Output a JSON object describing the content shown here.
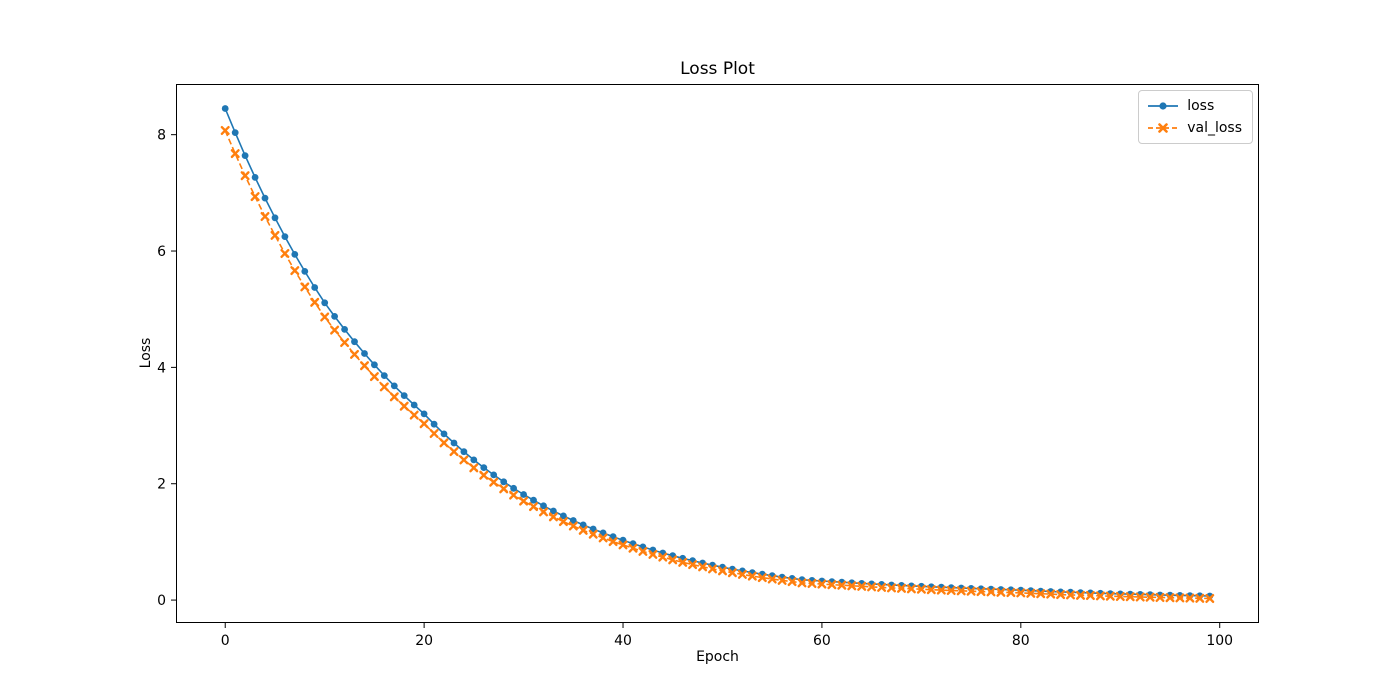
{
  "chart_data": {
    "type": "line",
    "title": "Loss Plot",
    "xlabel": "Epoch",
    "ylabel": "Loss",
    "xlim": [
      -4.95,
      103.95
    ],
    "ylim": [
      -0.394,
      8.871
    ],
    "xticks": [
      0,
      20,
      40,
      60,
      80,
      100
    ],
    "yticks": [
      0,
      2,
      4,
      6,
      8
    ],
    "grid": false,
    "legend_position": "upper right",
    "background": "#ffffff",
    "axis_color": "#000000",
    "x": [
      0,
      1,
      2,
      3,
      4,
      5,
      6,
      7,
      8,
      9,
      10,
      11,
      12,
      13,
      14,
      15,
      16,
      17,
      18,
      19,
      20,
      21,
      22,
      23,
      24,
      25,
      26,
      27,
      28,
      29,
      30,
      31,
      32,
      33,
      34,
      35,
      36,
      37,
      38,
      39,
      40,
      41,
      42,
      43,
      44,
      45,
      46,
      47,
      48,
      49,
      50,
      51,
      52,
      53,
      54,
      55,
      56,
      57,
      58,
      59,
      60,
      61,
      62,
      63,
      64,
      65,
      66,
      67,
      68,
      69,
      70,
      71,
      72,
      73,
      74,
      75,
      76,
      77,
      78,
      79,
      80,
      81,
      82,
      83,
      84,
      85,
      86,
      87,
      88,
      89,
      90,
      91,
      92,
      93,
      94,
      95,
      96,
      97,
      98,
      99
    ],
    "series": [
      {
        "name": "loss",
        "color": "#1f77b4",
        "line_style": "solid",
        "marker": "circle",
        "values": [
          8.45,
          8.035,
          7.641,
          7.266,
          6.91,
          6.571,
          6.248,
          5.942,
          5.65,
          5.373,
          5.11,
          4.876,
          4.653,
          4.441,
          4.238,
          4.044,
          3.859,
          3.682,
          3.514,
          3.353,
          3.2,
          3.024,
          2.857,
          2.7,
          2.551,
          2.41,
          2.277,
          2.152,
          2.033,
          1.921,
          1.815,
          1.716,
          1.621,
          1.532,
          1.447,
          1.368,
          1.292,
          1.221,
          1.154,
          1.09,
          1.03,
          0.97,
          0.914,
          0.86,
          0.81,
          0.763,
          0.719,
          0.677,
          0.637,
          0.6,
          0.566,
          0.533,
          0.502,
          0.472,
          0.445,
          0.419,
          0.395,
          0.372,
          0.35,
          0.339,
          0.328,
          0.317,
          0.307,
          0.297,
          0.287,
          0.278,
          0.269,
          0.26,
          0.252,
          0.244,
          0.236,
          0.228,
          0.221,
          0.214,
          0.207,
          0.2,
          0.194,
          0.188,
          0.181,
          0.176,
          0.17,
          0.162,
          0.155,
          0.148,
          0.141,
          0.135,
          0.128,
          0.123,
          0.117,
          0.112,
          0.107,
          0.102,
          0.097,
          0.093,
          0.088,
          0.084,
          0.081,
          0.077,
          0.073,
          0.07
        ]
      },
      {
        "name": "val_loss",
        "color": "#ff7f0e",
        "line_style": "dashed",
        "marker": "x",
        "values": [
          8.072,
          7.674,
          7.295,
          6.935,
          6.594,
          6.268,
          5.958,
          5.664,
          5.384,
          5.118,
          4.866,
          4.641,
          4.427,
          4.223,
          4.028,
          3.842,
          3.665,
          3.495,
          3.333,
          3.179,
          3.032,
          2.863,
          2.703,
          2.552,
          2.409,
          2.274,
          2.146,
          2.026,
          1.912,
          1.804,
          1.702,
          1.607,
          1.516,
          1.431,
          1.349,
          1.273,
          1.2,
          1.132,
          1.068,
          1.006,
          0.949,
          0.891,
          0.837,
          0.786,
          0.738,
          0.693,
          0.65,
          0.61,
          0.572,
          0.536,
          0.503,
          0.471,
          0.442,
          0.413,
          0.387,
          0.362,
          0.339,
          0.317,
          0.296,
          0.285,
          0.275,
          0.265,
          0.255,
          0.245,
          0.236,
          0.227,
          0.218,
          0.21,
          0.202,
          0.194,
          0.187,
          0.179,
          0.172,
          0.165,
          0.159,
          0.152,
          0.146,
          0.14,
          0.134,
          0.129,
          0.123,
          0.116,
          0.109,
          0.102,
          0.095,
          0.089,
          0.083,
          0.078,
          0.072,
          0.067,
          0.062,
          0.058,
          0.053,
          0.049,
          0.045,
          0.041,
          0.037,
          0.034,
          0.03,
          0.027
        ]
      }
    ]
  }
}
